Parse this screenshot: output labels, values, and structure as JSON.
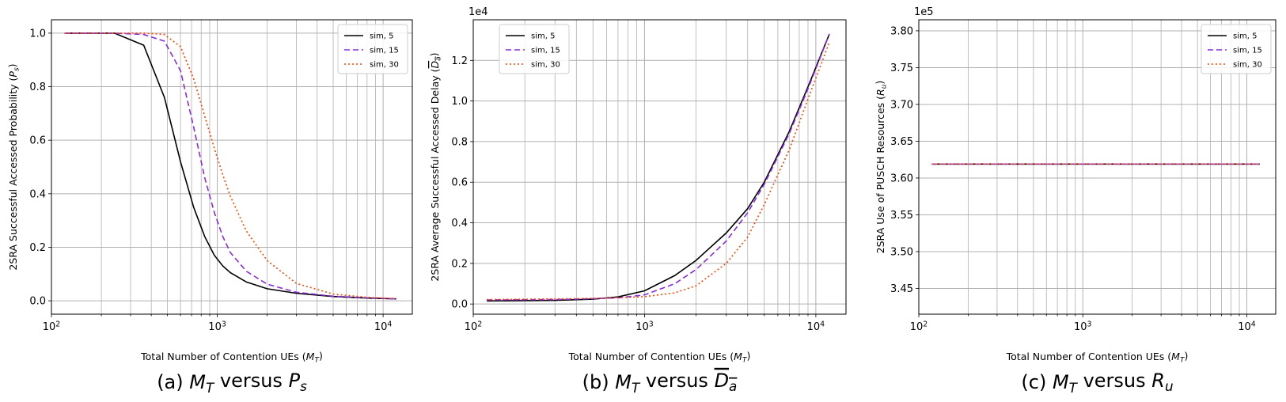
{
  "colors": {
    "s5": "#000000",
    "s15": "#8a2be2",
    "s30": "#ff4500",
    "grid": "#b0b0b0"
  },
  "chart_data": [
    {
      "type": "line",
      "caption_prefix": "(a) ",
      "caption_math": "M_T versus P_s",
      "xlabel": "Total Number of Contention UEs ($M_T$)",
      "ylabel": "2SRA Successful Accessed Probability ($P_s$)",
      "xscale": "log",
      "xlim": [
        100,
        15000
      ],
      "ylim": [
        -0.05,
        1.05
      ],
      "yticks": [
        "0.0",
        "0.2",
        "0.4",
        "0.6",
        "0.8",
        "1.0"
      ],
      "xticks": [
        "10^2",
        "10^3",
        "10^4"
      ],
      "offset": "",
      "legend": {
        "loc": "upper right",
        "entries": [
          "sim, 5",
          "sim, 15",
          "sim, 30"
        ]
      },
      "series": [
        {
          "name": "sim, 5",
          "style": "solid",
          "x": [
            120,
            240,
            360,
            480,
            600,
            720,
            840,
            960,
            1080,
            1200,
            1500,
            2000,
            3000,
            5000,
            8000,
            12000
          ],
          "y": [
            1.0,
            1.0,
            0.955,
            0.76,
            0.52,
            0.35,
            0.24,
            0.17,
            0.13,
            0.105,
            0.07,
            0.045,
            0.028,
            0.016,
            0.01,
            0.007
          ]
        },
        {
          "name": "sim, 15",
          "style": "dashed",
          "x": [
            120,
            240,
            360,
            480,
            600,
            720,
            840,
            960,
            1080,
            1200,
            1500,
            2000,
            3000,
            5000,
            8000,
            12000
          ],
          "y": [
            1.0,
            1.0,
            0.995,
            0.97,
            0.86,
            0.65,
            0.46,
            0.33,
            0.24,
            0.18,
            0.11,
            0.062,
            0.032,
            0.017,
            0.011,
            0.007
          ]
        },
        {
          "name": "sim, 30",
          "style": "dotted",
          "x": [
            120,
            240,
            360,
            480,
            600,
            720,
            840,
            960,
            1080,
            1200,
            1500,
            2000,
            3000,
            5000,
            8000,
            12000
          ],
          "y": [
            1.0,
            1.0,
            1.0,
            0.995,
            0.95,
            0.83,
            0.69,
            0.57,
            0.47,
            0.39,
            0.26,
            0.15,
            0.065,
            0.025,
            0.013,
            0.008
          ]
        }
      ]
    },
    {
      "type": "line",
      "caption_prefix": "(b) ",
      "caption_math": "M_T versus D_a-bar",
      "xlabel": "Total Number of Contention UEs ($M_T$)",
      "ylabel": "2SRA Average Successful Accessed Delay ($\\overline{D_a}$)",
      "xscale": "log",
      "xlim": [
        100,
        15000
      ],
      "ylim": [
        -0.05,
        1.4
      ],
      "yticks": [
        "0.0",
        "0.2",
        "0.4",
        "0.6",
        "0.8",
        "1.0",
        "1.2"
      ],
      "xticks": [
        "10^2",
        "10^3",
        "10^4"
      ],
      "offset": "1e4",
      "legend": {
        "loc": "upper left",
        "entries": [
          "sim, 5",
          "sim, 15",
          "sim, 30"
        ]
      },
      "series": [
        {
          "name": "sim, 5",
          "style": "solid",
          "x": [
            120,
            300,
            500,
            700,
            1000,
            1500,
            2000,
            3000,
            4000,
            5000,
            7000,
            9000,
            12000
          ],
          "y": [
            0.015,
            0.018,
            0.024,
            0.035,
            0.065,
            0.14,
            0.215,
            0.35,
            0.47,
            0.6,
            0.85,
            1.07,
            1.33
          ]
        },
        {
          "name": "sim, 15",
          "style": "dashed",
          "x": [
            120,
            300,
            500,
            700,
            1000,
            1500,
            2000,
            3000,
            4000,
            5000,
            7000,
            9000,
            12000
          ],
          "y": [
            0.02,
            0.022,
            0.026,
            0.03,
            0.045,
            0.1,
            0.17,
            0.31,
            0.45,
            0.59,
            0.84,
            1.06,
            1.33
          ]
        },
        {
          "name": "sim, 30",
          "style": "dotted",
          "x": [
            120,
            300,
            500,
            700,
            1000,
            1500,
            2000,
            3000,
            4000,
            5000,
            7000,
            9000,
            12000
          ],
          "y": [
            0.022,
            0.025,
            0.028,
            0.031,
            0.036,
            0.055,
            0.09,
            0.2,
            0.33,
            0.49,
            0.76,
            1.01,
            1.29
          ]
        }
      ]
    },
    {
      "type": "line",
      "caption_prefix": "(c) ",
      "caption_math": "M_T versus R_u",
      "xlabel": "Total Number of Contention UEs ($M_T$)",
      "ylabel": "2SRA Use of PUSCH Resources ($R_u$)",
      "xscale": "log",
      "xlim": [
        100,
        15000
      ],
      "ylim": [
        3.415,
        3.815
      ],
      "yticks": [
        "3.45",
        "3.50",
        "3.55",
        "3.60",
        "3.65",
        "3.70",
        "3.75",
        "3.80"
      ],
      "xticks": [
        "10^2",
        "10^3",
        "10^4"
      ],
      "offset": "1e5",
      "legend": {
        "loc": "upper right",
        "entries": [
          "sim, 5",
          "sim, 15",
          "sim, 30"
        ]
      },
      "series": [
        {
          "name": "sim, 5",
          "style": "solid",
          "x": [
            120,
            12000
          ],
          "y": [
            3.619,
            3.619
          ]
        },
        {
          "name": "sim, 15",
          "style": "dashed",
          "x": [
            120,
            12000
          ],
          "y": [
            3.619,
            3.619
          ]
        },
        {
          "name": "sim, 30",
          "style": "dotted",
          "x": [
            120,
            12000
          ],
          "y": [
            3.619,
            3.619
          ]
        }
      ]
    }
  ]
}
